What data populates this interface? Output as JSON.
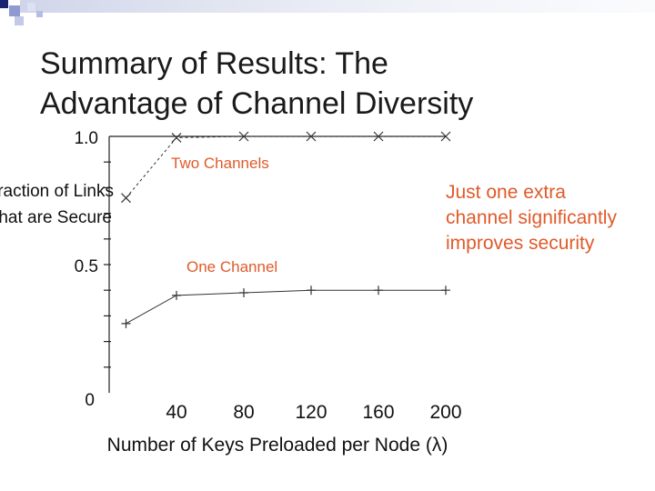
{
  "slide": {
    "title_line1": "Summary of Results: The",
    "title_line2": "Advantage of Channel Diversity",
    "note_line1": "Just one extra",
    "note_line2": "channel significantly",
    "note_line3": "improves security",
    "accent_color": "#e05a2a"
  },
  "chart_data": {
    "type": "line",
    "xlabel": "Number of Keys Preloaded per Node (λ)",
    "ylabel_line1": "Fraction of Links",
    "ylabel_line2": "that are Secure",
    "xlim": [
      0,
      200
    ],
    "ylim": [
      0,
      1.0
    ],
    "x_ticks": [
      "40",
      "80",
      "120",
      "160",
      "200"
    ],
    "y_ticks": [
      {
        "label": "1.0",
        "value": 1.0
      },
      {
        "label": "0.5",
        "value": 0.5
      },
      {
        "label": "0",
        "value": 0.0
      }
    ],
    "series": [
      {
        "name": "Two Channels",
        "x": [
          10,
          40,
          80,
          120,
          160,
          200
        ],
        "values": [
          0.76,
          0.995,
          1.0,
          1.0,
          1.0,
          1.0
        ]
      },
      {
        "name": "One Channel",
        "x": [
          10,
          40,
          80,
          120,
          160,
          200
        ],
        "values": [
          0.27,
          0.38,
          0.39,
          0.4,
          0.4,
          0.4
        ]
      }
    ]
  }
}
